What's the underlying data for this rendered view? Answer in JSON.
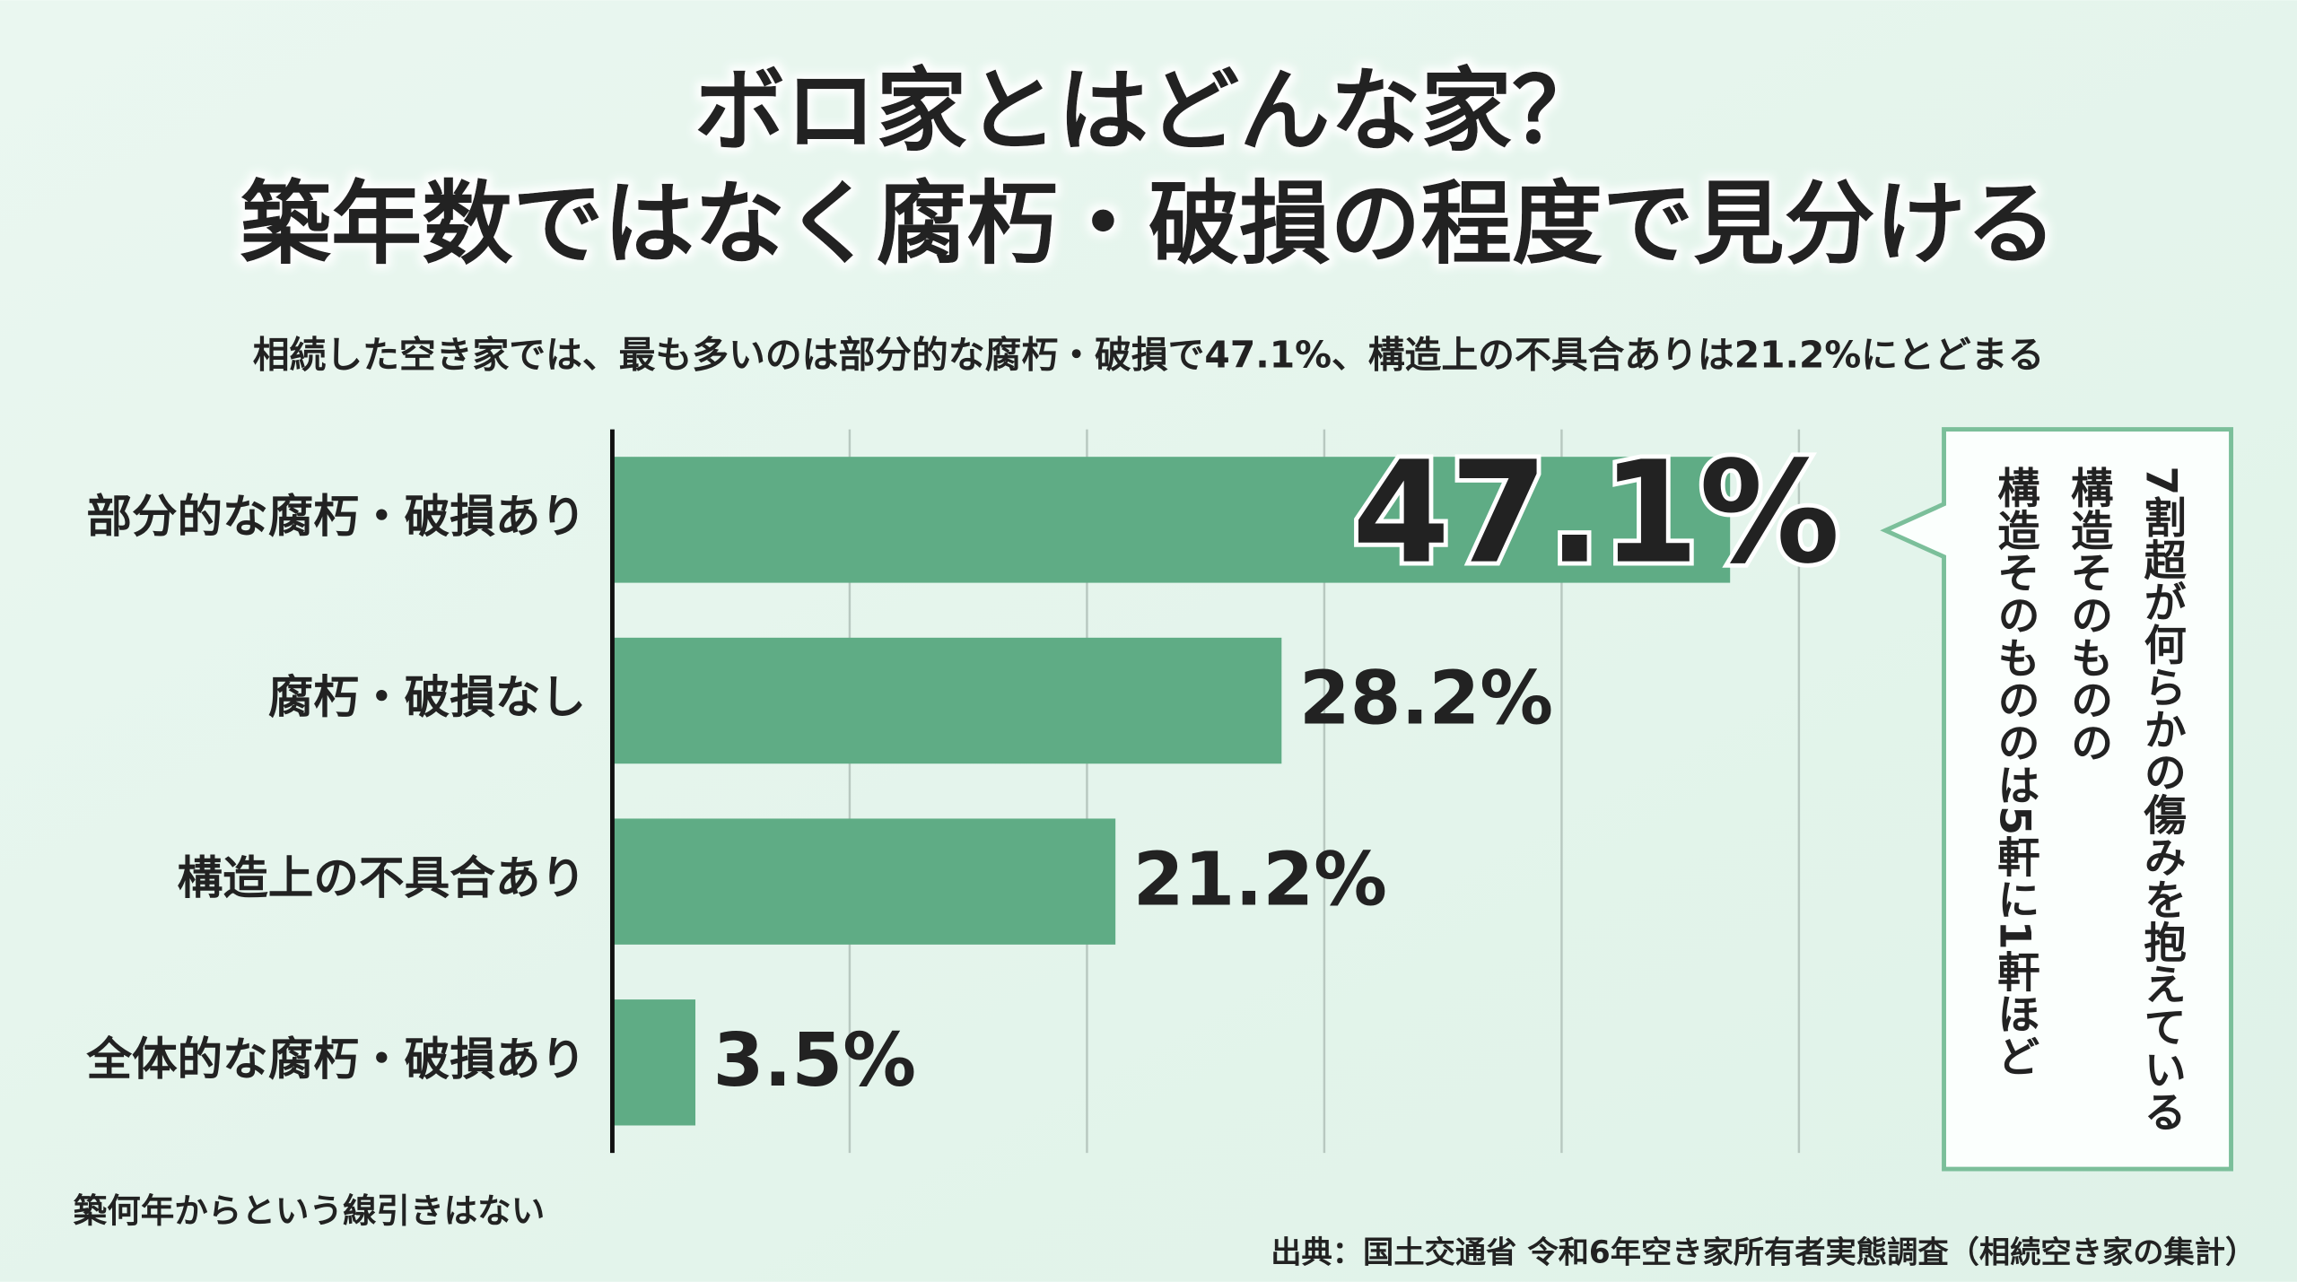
{
  "chart_data": {
    "type": "hbar",
    "title_lines": [
      "ボロ家とはどんな家？",
      "築年数ではなく腐朽・破損の程度で見分ける"
    ],
    "subtitle": "相続した空き家では、最も多いのは部分的な腐朽・破損で47.1%、構造上の不具合ありは21.2%にとどまる",
    "categories": [
      "部分的な腐朽・破損あり",
      "腐朽・破損なし",
      "構造上の不具合あり",
      "全体的な腐朽・破損あり"
    ],
    "values": [
      47.1,
      28.2,
      21.2,
      3.5
    ],
    "value_labels": [
      "47.1%",
      "28.2%",
      "21.2%",
      "3.5%"
    ],
    "color": "#5fac85",
    "label_colors": [
      "#8a0f3c",
      "#e07012",
      "#e07012",
      "#e07012"
    ],
    "xlim": [
      0,
      50
    ],
    "xticks": [
      0,
      10,
      20,
      30,
      40,
      50
    ],
    "grid": true,
    "callout_lines": [
      "7割超が何らかの傷みを抱えている",
      "構造そのものの",
      "構造そのもののは5軒に1軒ほど"
    ],
    "note": "築何年からという線引きはない",
    "source": "出典：国土交通省 令和6年空き家所有者実態調査（相続空き家の集計）"
  }
}
